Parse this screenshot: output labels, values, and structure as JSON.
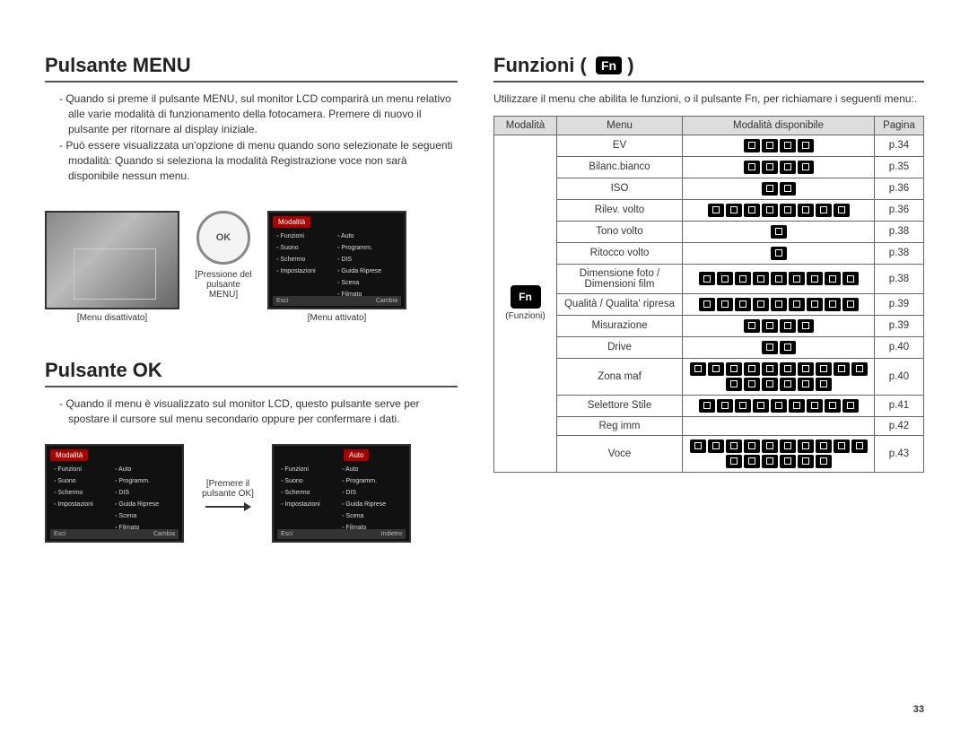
{
  "pageNumber": "33",
  "left": {
    "sectionMenu": {
      "title": "Pulsante MENU",
      "para1": "- Quando si preme il pulsante MENU, sul monitor LCD comparirà un menu relativo alle varie modalità di funzionamento della fotocamera. Premere di nuovo il pulsante per ritornare al display iniziale.",
      "para2": "- Può essere visualizzata un'opzione di menu quando sono selezionate le seguenti modalità: Quando si seleziona la modalità Registrazione voce non sarà disponibile nessun menu.",
      "captionOff": "[Menu disattivato]",
      "pressLabel1": "[Pressione del",
      "pressLabel2": "pulsante MENU]",
      "captionOn": "[Menu attivato]",
      "menuTab": "Modalità",
      "menuLeft": [
        "Funzioni",
        "Suono",
        "Schermo",
        "Impostazioni"
      ],
      "menuRight": [
        "Auto",
        "Programm.",
        "DIS",
        "Guida Riprese",
        "Scena",
        "Filmato"
      ],
      "footerL": "Esci",
      "footerR": "Cambia"
    },
    "sectionOk": {
      "title": "Pulsante OK",
      "para": "- Quando il menu è visualizzato sul monitor LCD, questo pulsante serve per spostare il cursore sul menu secondario oppure per confermare i dati.",
      "pressLabel1": "[Premere il",
      "pressLabel2": "pulsante OK]",
      "footer2R": "Indietro"
    }
  },
  "right": {
    "title": "Funzioni (",
    "titleEnd": " )",
    "intro": "Utilizzare il menu che abilita le funzioni, o il pulsante Fn, per richiamare i seguenti menu:.",
    "headers": {
      "mode": "Modalità",
      "menu": "Menu",
      "avail": "Modalità disponibile",
      "page": "Pagina"
    },
    "modeCell": {
      "icon": "Fn",
      "label": "(Funzioni)"
    },
    "rows": [
      {
        "menu": "EV",
        "chips": 4,
        "page": "p.34"
      },
      {
        "menu": "Bilanc.bianco",
        "chips": 4,
        "page": "p.35"
      },
      {
        "menu": "ISO",
        "chips": 2,
        "page": "p.36"
      },
      {
        "menu": "Rilev. volto",
        "chips": 8,
        "page": "p.36"
      },
      {
        "menu": "Tono volto",
        "chips": 1,
        "page": "p.38"
      },
      {
        "menu": "Ritocco volto",
        "chips": 1,
        "page": "p.38"
      },
      {
        "menu": "Dimensione foto / Dimensioni film",
        "chips": 9,
        "page": "p.38"
      },
      {
        "menu": "Qualità / Qualita' ripresa",
        "chips": 9,
        "page": "p.39"
      },
      {
        "menu": "Misurazione",
        "chips": 4,
        "page": "p.39"
      },
      {
        "menu": "Drive",
        "chips": 2,
        "page": "p.40"
      },
      {
        "menu": "Zona maf",
        "chips": 16,
        "page": "p.40"
      },
      {
        "menu": "Selettore Stile",
        "chips": 9,
        "page": "p.41"
      },
      {
        "menu": "Reg imm",
        "chips": 0,
        "page": "p.42"
      },
      {
        "menu": "Voce",
        "chips": 16,
        "page": "p.43"
      }
    ]
  }
}
